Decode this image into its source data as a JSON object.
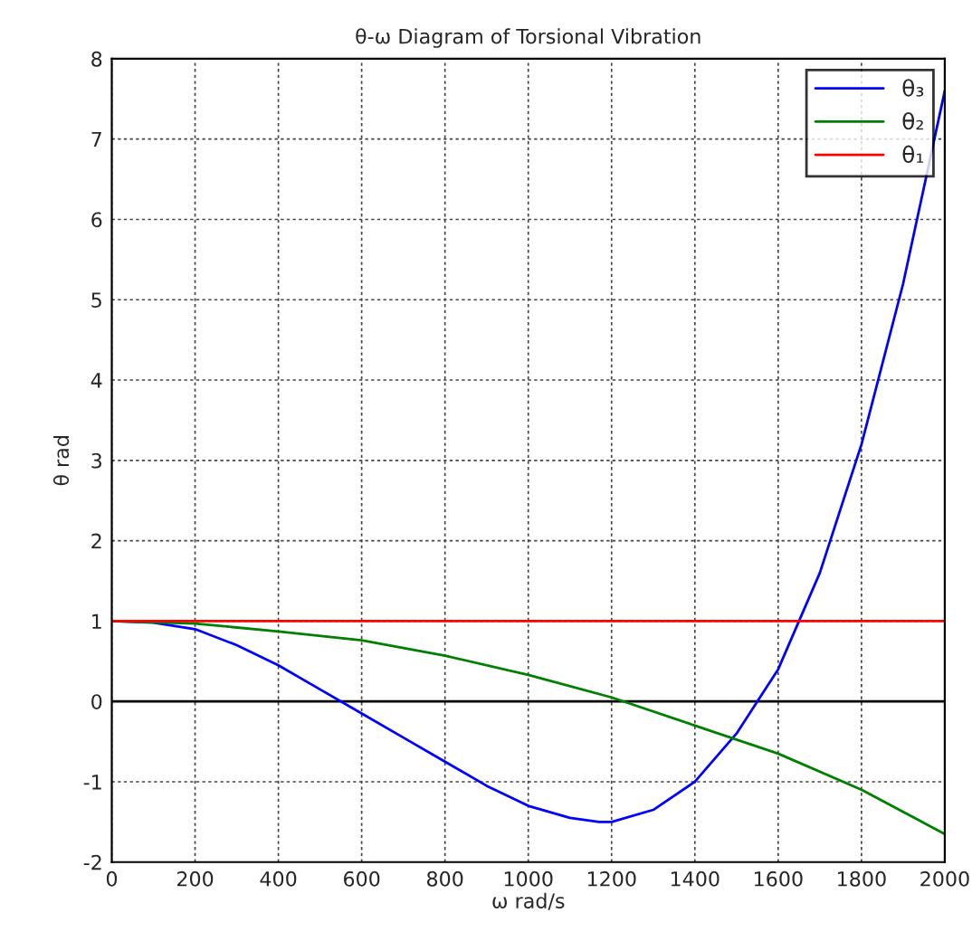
{
  "chart_data": {
    "type": "line",
    "title": "θ-ω Diagram of Torsional Vibration",
    "xlabel": "ω rad/s",
    "ylabel": "θ rad",
    "xlim": [
      0,
      2000
    ],
    "ylim": [
      -2,
      8
    ],
    "xticks": [
      0,
      200,
      400,
      600,
      800,
      1000,
      1200,
      1400,
      1600,
      1800,
      2000
    ],
    "yticks": [
      -2,
      -1,
      0,
      1,
      2,
      3,
      4,
      5,
      6,
      7,
      8
    ],
    "grid": true,
    "legend": "top right",
    "line_style": "solid",
    "ref_lines": [
      {
        "axis": "y",
        "value": 0,
        "color": "#000000"
      }
    ],
    "series": [
      {
        "name": "θ₃",
        "color": "#0000ff",
        "x": [
          0,
          100,
          200,
          300,
          400,
          500,
          600,
          700,
          800,
          900,
          1000,
          1100,
          1170,
          1200,
          1300,
          1400,
          1500,
          1600,
          1700,
          1800,
          1900,
          2000
        ],
        "values": [
          1,
          0.98,
          0.9,
          0.7,
          0.45,
          0.15,
          -0.15,
          -0.45,
          -0.75,
          -1.05,
          -1.3,
          -1.45,
          -1.5,
          -1.5,
          -1.35,
          -1.0,
          -0.4,
          0.4,
          1.6,
          3.2,
          5.2,
          7.6
        ]
      },
      {
        "name": "θ₂",
        "color": "#008000",
        "x": [
          0,
          200,
          400,
          600,
          800,
          1000,
          1200,
          1400,
          1600,
          1800,
          2000
        ],
        "values": [
          1,
          0.97,
          0.87,
          0.76,
          0.57,
          0.33,
          0.05,
          -0.3,
          -0.65,
          -1.1,
          -1.65
        ]
      },
      {
        "name": "θ₁",
        "color": "#ff0000",
        "x": [
          0,
          2000
        ],
        "values": [
          1,
          1
        ]
      }
    ]
  }
}
